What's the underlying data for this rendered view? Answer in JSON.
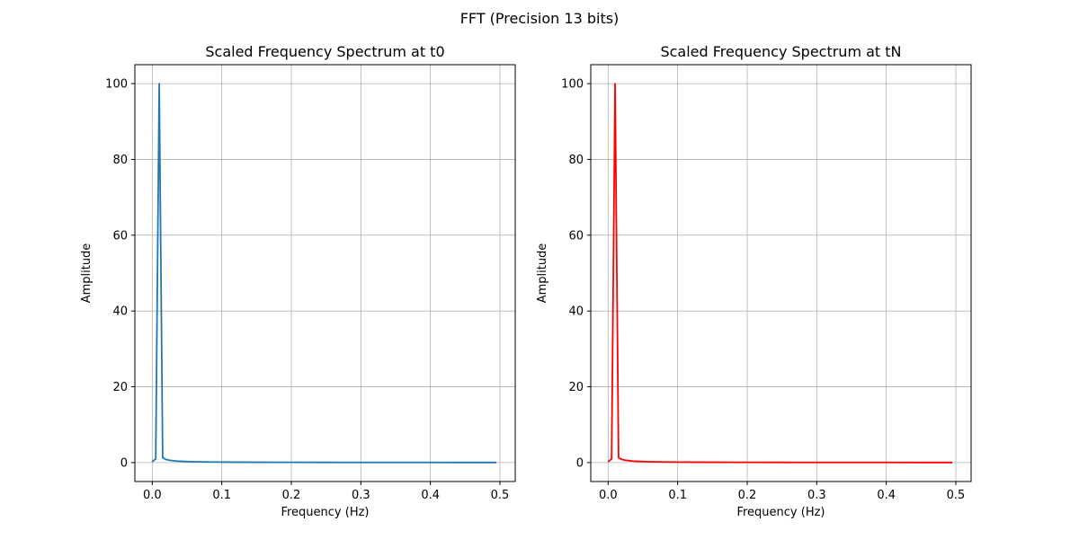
{
  "figure": {
    "suptitle": "FFT (Precision 13 bits)"
  },
  "chart_data": [
    {
      "type": "line",
      "title": "Scaled Frequency Spectrum at t0",
      "xlabel": "Frequency (Hz)",
      "ylabel": "Amplitude",
      "xlim": [
        -0.025,
        0.522
      ],
      "ylim": [
        -5,
        105
      ],
      "xticks": [
        0.0,
        0.1,
        0.2,
        0.3,
        0.4,
        0.5
      ],
      "xtick_labels": [
        "0.0",
        "0.1",
        "0.2",
        "0.3",
        "0.4",
        "0.5"
      ],
      "yticks": [
        0,
        20,
        40,
        60,
        80,
        100
      ],
      "ytick_labels": [
        "0",
        "20",
        "40",
        "60",
        "80",
        "100"
      ],
      "grid": true,
      "series": [
        {
          "color": "#1f77b4",
          "x": [
            0.0,
            0.005,
            0.01,
            0.015,
            0.02,
            0.025,
            0.03,
            0.035,
            0.04,
            0.05,
            0.06,
            0.08,
            0.1,
            0.15,
            0.2,
            0.25,
            0.3,
            0.35,
            0.4,
            0.45,
            0.495
          ],
          "y": [
            0.2,
            1.0,
            100.0,
            1.3,
            0.8,
            0.6,
            0.5,
            0.4,
            0.35,
            0.28,
            0.22,
            0.16,
            0.12,
            0.08,
            0.06,
            0.05,
            0.04,
            0.03,
            0.03,
            0.02,
            0.02
          ]
        }
      ]
    },
    {
      "type": "line",
      "title": "Scaled Frequency Spectrum at tN",
      "xlabel": "Frequency (Hz)",
      "ylabel": "Amplitude",
      "xlim": [
        -0.025,
        0.522
      ],
      "ylim": [
        -5,
        105
      ],
      "xticks": [
        0.0,
        0.1,
        0.2,
        0.3,
        0.4,
        0.5
      ],
      "xtick_labels": [
        "0.0",
        "0.1",
        "0.2",
        "0.3",
        "0.4",
        "0.5"
      ],
      "yticks": [
        0,
        20,
        40,
        60,
        80,
        100
      ],
      "ytick_labels": [
        "0",
        "20",
        "40",
        "60",
        "80",
        "100"
      ],
      "grid": true,
      "series": [
        {
          "color": "#ff0000",
          "x": [
            0.0,
            0.005,
            0.01,
            0.015,
            0.02,
            0.025,
            0.03,
            0.035,
            0.04,
            0.05,
            0.06,
            0.08,
            0.1,
            0.15,
            0.2,
            0.25,
            0.3,
            0.35,
            0.4,
            0.45,
            0.495
          ],
          "y": [
            0.2,
            1.0,
            100.0,
            1.3,
            0.8,
            0.6,
            0.5,
            0.4,
            0.35,
            0.28,
            0.22,
            0.16,
            0.12,
            0.08,
            0.06,
            0.05,
            0.04,
            0.03,
            0.03,
            0.02,
            0.02
          ]
        }
      ]
    }
  ]
}
